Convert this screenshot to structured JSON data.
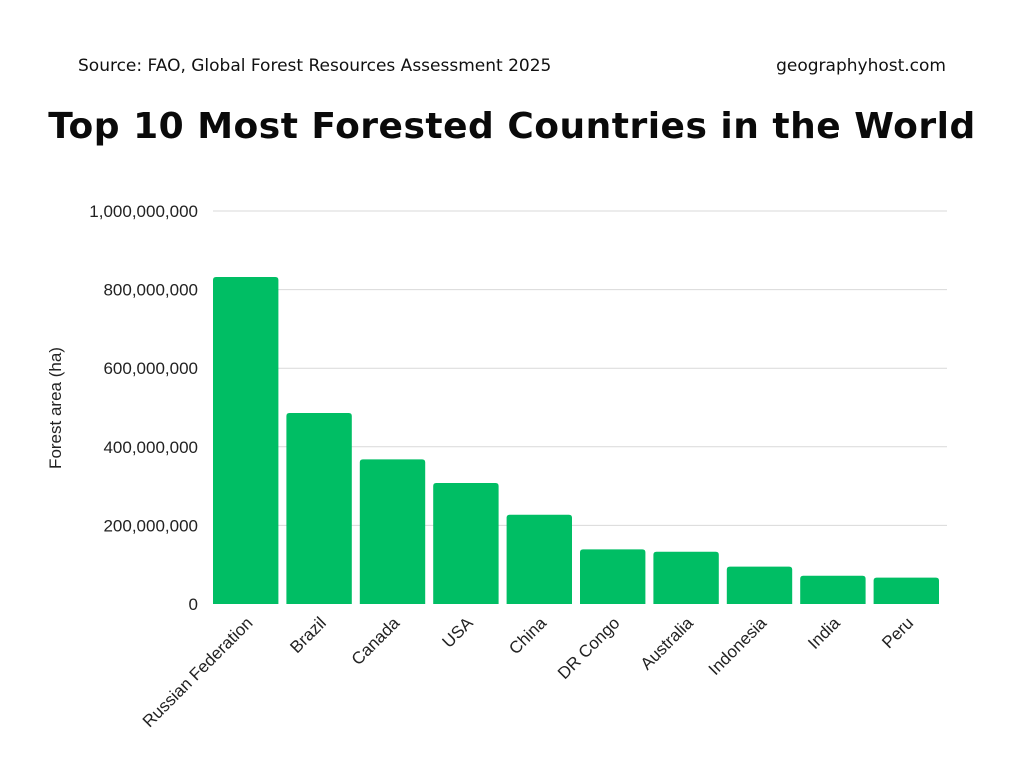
{
  "header": {
    "source": "Source: FAO, Global Forest Resources Assessment 2025",
    "site": "geographyhost.com"
  },
  "chart_data": {
    "type": "bar",
    "title": "Top 10 Most Forested Countries in the World",
    "xlabel": "",
    "ylabel": "Forest area (ha)",
    "categories": [
      "Russian Federation",
      "Brazil",
      "Canada",
      "USA",
      "China",
      "DR Congo",
      "Australia",
      "Indonesia",
      "India",
      "Peru"
    ],
    "values": [
      832000000,
      486000000,
      368000000,
      308000000,
      227000000,
      139000000,
      133000000,
      95000000,
      72000000,
      67000000
    ],
    "ylim": [
      0,
      1000000000
    ],
    "yticks": [
      0,
      200000000,
      400000000,
      600000000,
      800000000,
      1000000000
    ],
    "ytick_labels": [
      "0",
      "200,000,000",
      "400,000,000",
      "600,000,000",
      "800,000,000",
      "1,000,000,000"
    ],
    "grid": true,
    "bar_color": "#00be64",
    "grid_color": "#d9d9d9"
  }
}
